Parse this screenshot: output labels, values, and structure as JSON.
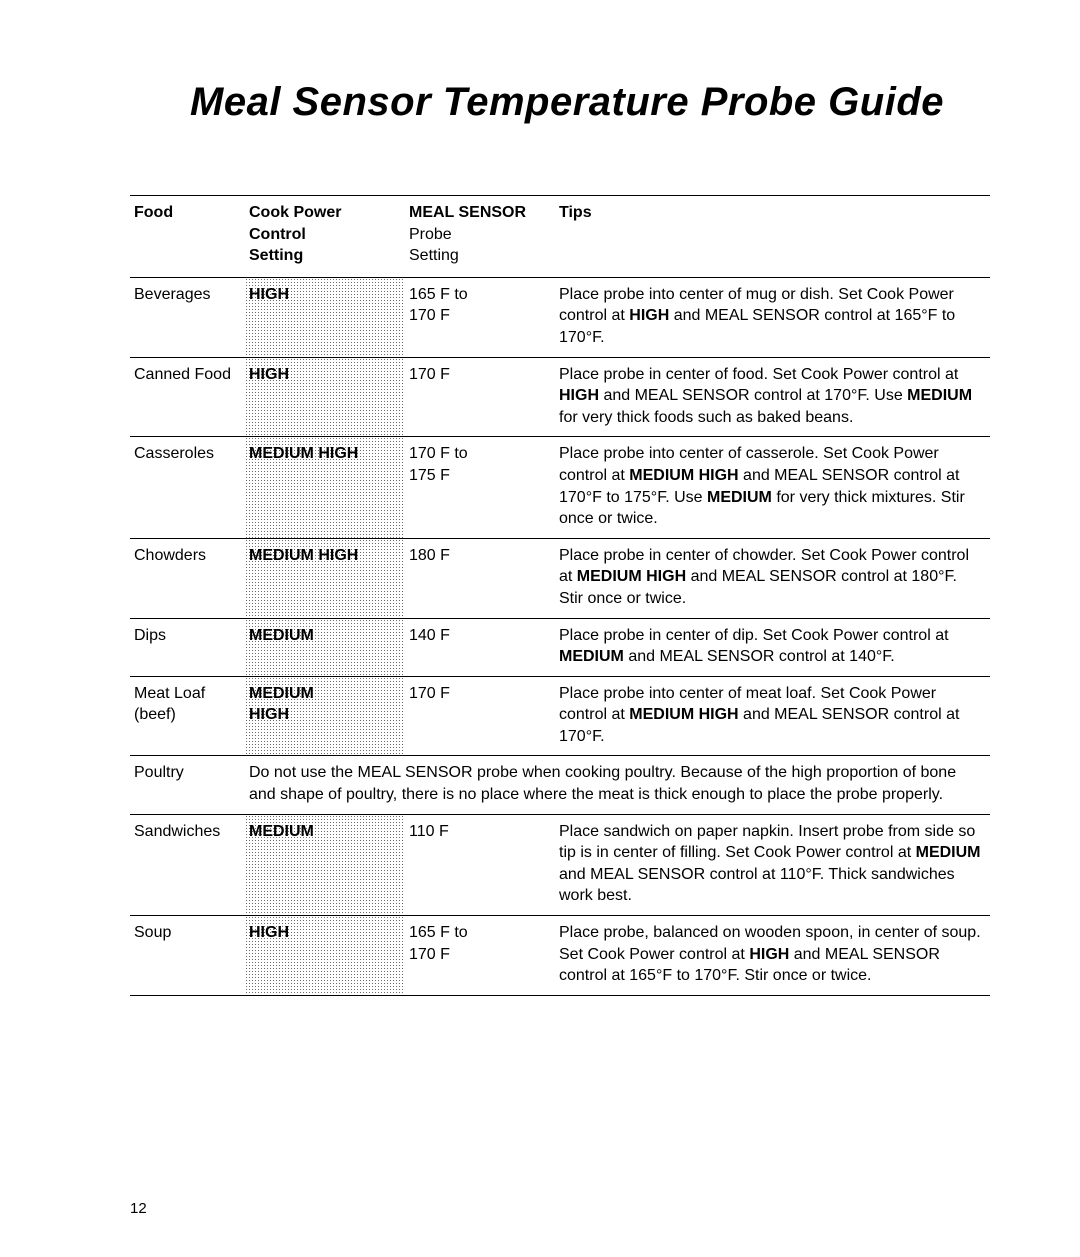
{
  "title": "Meal Sensor Temperature Probe Guide",
  "page_number": "12",
  "headers": {
    "food": "Food",
    "power_line1": "Cook Power",
    "power_line2": "Control",
    "power_line3": "Setting",
    "probe_line1": "MEAL SENSOR",
    "probe_line2": "Probe",
    "probe_line3": "Setting",
    "tips": "Tips"
  },
  "rows": [
    {
      "food": "Beverages",
      "power": "HIGH",
      "probe": "165 F to\n170 F",
      "tips": "Place probe into center of mug or dish. Set Cook Power control at <b>HIGH</b> and MEAL SENSOR control at 165°F to 170°F."
    },
    {
      "food": "Canned Food",
      "power": "HIGH",
      "probe": "170 F",
      "tips": "Place probe in center of food. Set Cook Power control at <b>HIGH</b> and MEAL SENSOR control at 170°F. Use <b>MEDIUM</b> for very thick foods such as baked beans."
    },
    {
      "food": "Casseroles",
      "power": "MEDIUM HIGH",
      "probe": "170 F to\n175 F",
      "tips": "Place probe into center of casserole. Set Cook Power control at <b>MEDIUM HIGH</b> and MEAL SENSOR control at 170°F to 175°F. Use <b>MEDIUM</b> for very thick mixtures. Stir once or twice."
    },
    {
      "food": "Chowders",
      "power": "MEDIUM HIGH",
      "probe": "180 F",
      "tips": "Place probe in center of chowder. Set Cook Power control at <b>MEDIUM HIGH</b> and MEAL SENSOR control at 180°F. Stir once or twice."
    },
    {
      "food": "Dips",
      "power": "MEDIUM",
      "probe": "140 F",
      "tips": "Place probe in center of dip. Set Cook Power control at <b>MEDIUM</b> and MEAL SENSOR control at 140°F."
    },
    {
      "food": "Meat Loaf\n(beef)",
      "power": "MEDIUM\nHIGH",
      "probe": "170 F",
      "tips": "Place probe into center of meat loaf. Set Cook Power control at <b>MEDIUM HIGH</b> and MEAL SENSOR control at 170°F."
    },
    {
      "food": "Poultry",
      "span_note": "Do not use the MEAL SENSOR probe when cooking poultry. Because of the high proportion of bone and shape of poultry, there is no place where the meat is thick enough to place the probe properly."
    },
    {
      "food": "Sandwiches",
      "power": "MEDIUM",
      "probe": "110 F",
      "tips": "Place sandwich on paper napkin. Insert probe from side so tip is in center of filling. Set Cook Power control at <b>MEDIUM</b> and MEAL SENSOR control at 110°F. Thick sandwiches work best."
    },
    {
      "food": "Soup",
      "power": "HIGH",
      "probe": "165 F to\n170 F",
      "tips": "Place probe, balanced on wooden spoon, in center of soup. Set Cook Power control at <b>HIGH</b> and MEAL SENSOR control at 165°F to 170°F. Stir once or twice."
    }
  ]
}
